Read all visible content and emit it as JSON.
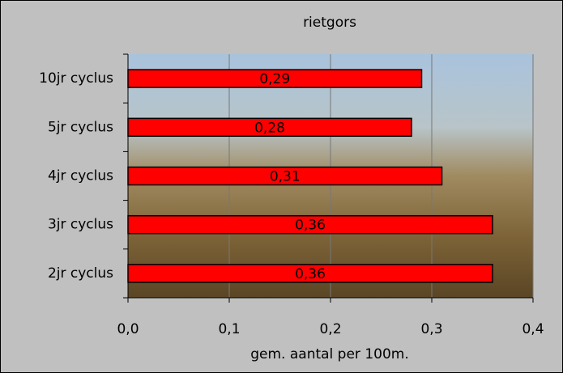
{
  "chart_data": {
    "type": "bar",
    "orientation": "horizontal",
    "title": "rietgors",
    "x_label": "gem. aantal per 100m.",
    "categories": [
      "10jr cyclus",
      "5jr cyclus",
      "4jr cyclus",
      "3jr cyclus",
      "2jr cyclus"
    ],
    "values": [
      0.29,
      0.28,
      0.31,
      0.36,
      0.36
    ],
    "value_labels": [
      "0,29",
      "0,28",
      "0,31",
      "0,36",
      "0,36"
    ],
    "color": "#ff0000",
    "xlim": [
      0,
      0.4
    ],
    "xticks": [
      {
        "value": 0,
        "label": "0,0"
      },
      {
        "value": 0.1,
        "label": "0,1"
      },
      {
        "value": 0.2,
        "label": "0,2"
      },
      {
        "value": 0.3,
        "label": "0,3"
      },
      {
        "value": 0.4,
        "label": "0,4"
      }
    ],
    "grid": true
  }
}
